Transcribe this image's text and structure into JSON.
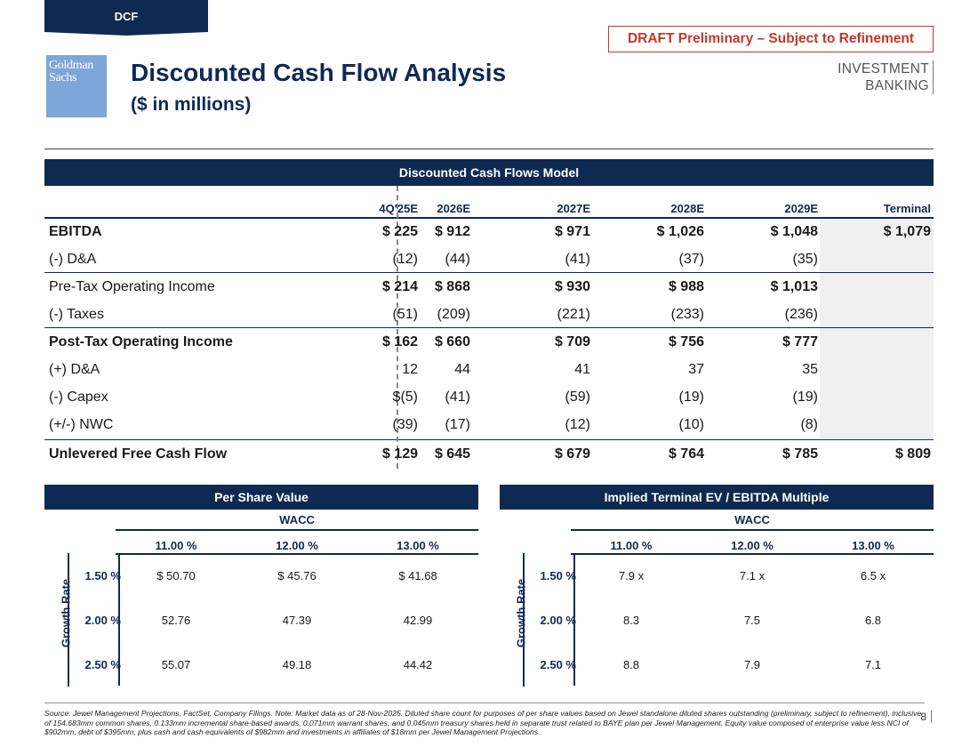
{
  "header": {
    "tab": "DCF",
    "draft": "DRAFT Preliminary – Subject to Refinement",
    "logo_line1": "Goldman",
    "logo_line2": "Sachs",
    "title": "Discounted Cash Flow Analysis",
    "subtitle": "($ in millions)",
    "division_line1": "INVESTMENT",
    "division_line2": "BANKING"
  },
  "dcf": {
    "title": "Discounted Cash Flows Model",
    "columns": [
      "4Q'25E",
      "2026E",
      "2027E",
      "2028E",
      "2029E",
      "Terminal"
    ],
    "rows": [
      {
        "label": "EBITDA",
        "values": [
          "$ 225",
          "$ 912",
          "$ 971",
          "$ 1,026",
          "$ 1,048",
          "$ 1,079"
        ]
      },
      {
        "label": "(-) D&A",
        "values": [
          "(12)",
          "(44)",
          "(41)",
          "(37)",
          "(35)",
          ""
        ]
      },
      {
        "label": "Pre-Tax Operating Income",
        "values": [
          "$ 214",
          "$ 868",
          "$ 930",
          "$ 988",
          "$ 1,013",
          ""
        ]
      },
      {
        "label": "(-) Taxes",
        "values": [
          "(51)",
          "(209)",
          "(221)",
          "(233)",
          "(236)",
          ""
        ]
      },
      {
        "label": "Post-Tax Operating Income",
        "values": [
          "$ 162",
          "$ 660",
          "$ 709",
          "$ 756",
          "$ 777",
          ""
        ]
      },
      {
        "label": "(+) D&A",
        "values": [
          "12",
          "44",
          "41",
          "37",
          "35",
          ""
        ]
      },
      {
        "label": "(-) Capex",
        "values": [
          "$(5)",
          "(41)",
          "(59)",
          "(19)",
          "(19)",
          ""
        ]
      },
      {
        "label": "(+/-) NWC",
        "values": [
          "(39)",
          "(17)",
          "(12)",
          "(10)",
          "(8)",
          ""
        ]
      },
      {
        "label": "Unlevered Free Cash Flow",
        "values": [
          "$ 129",
          "$ 645",
          "$ 679",
          "$ 764",
          "$ 785",
          "$ 809"
        ]
      }
    ]
  },
  "per_share": {
    "title": "Per Share Value",
    "wacc_label": "WACC",
    "growth_label": "Growth Rate",
    "columns": [
      "11.00 %",
      "12.00 %",
      "13.00 %"
    ],
    "rows": [
      {
        "rate": "1.50 %",
        "values": [
          "$ 50.70",
          "$ 45.76",
          "$ 41.68"
        ]
      },
      {
        "rate": "2.00 %",
        "values": [
          "52.76",
          "47.39",
          "42.99"
        ]
      },
      {
        "rate": "2.50 %",
        "values": [
          "55.07",
          "49.18",
          "44.42"
        ]
      }
    ]
  },
  "ev_multiple": {
    "title": "Implied Terminal EV / EBITDA Multiple",
    "wacc_label": "WACC",
    "growth_label": "Growth Rate",
    "columns": [
      "11.00 %",
      "12.00 %",
      "13.00 %"
    ],
    "rows": [
      {
        "rate": "1.50 %",
        "values": [
          "7.9 x",
          "7.1 x",
          "6.5 x"
        ]
      },
      {
        "rate": "2.00 %",
        "values": [
          "8.3",
          "7.5",
          "6.8"
        ]
      },
      {
        "rate": "2.50 %",
        "values": [
          "8.8",
          "7.9",
          "7.1"
        ]
      }
    ]
  },
  "footer": {
    "note": "Source: Jewel Management Projections, FactSet, Company Filings. Note: Market data as of 28-Nov-2025. Diluted share count for purposes of per share values based on Jewel standalone diluted shares outstanding (preliminary, subject to refinement), inclusive of 154.683mm common shares, 0.133mm incremental share-based awards, 0.071mm warrant shares, and 0.045mm treasury shares held in separate trust related to BAYE plan per Jewel Management. Equity value composed of enterprise value less NCI of $902mm, debt of $395mm, plus cash and cash equivalents of $982mm and investments in affiliates of $18mm per Jewel Management Projections.",
    "page": "8"
  }
}
